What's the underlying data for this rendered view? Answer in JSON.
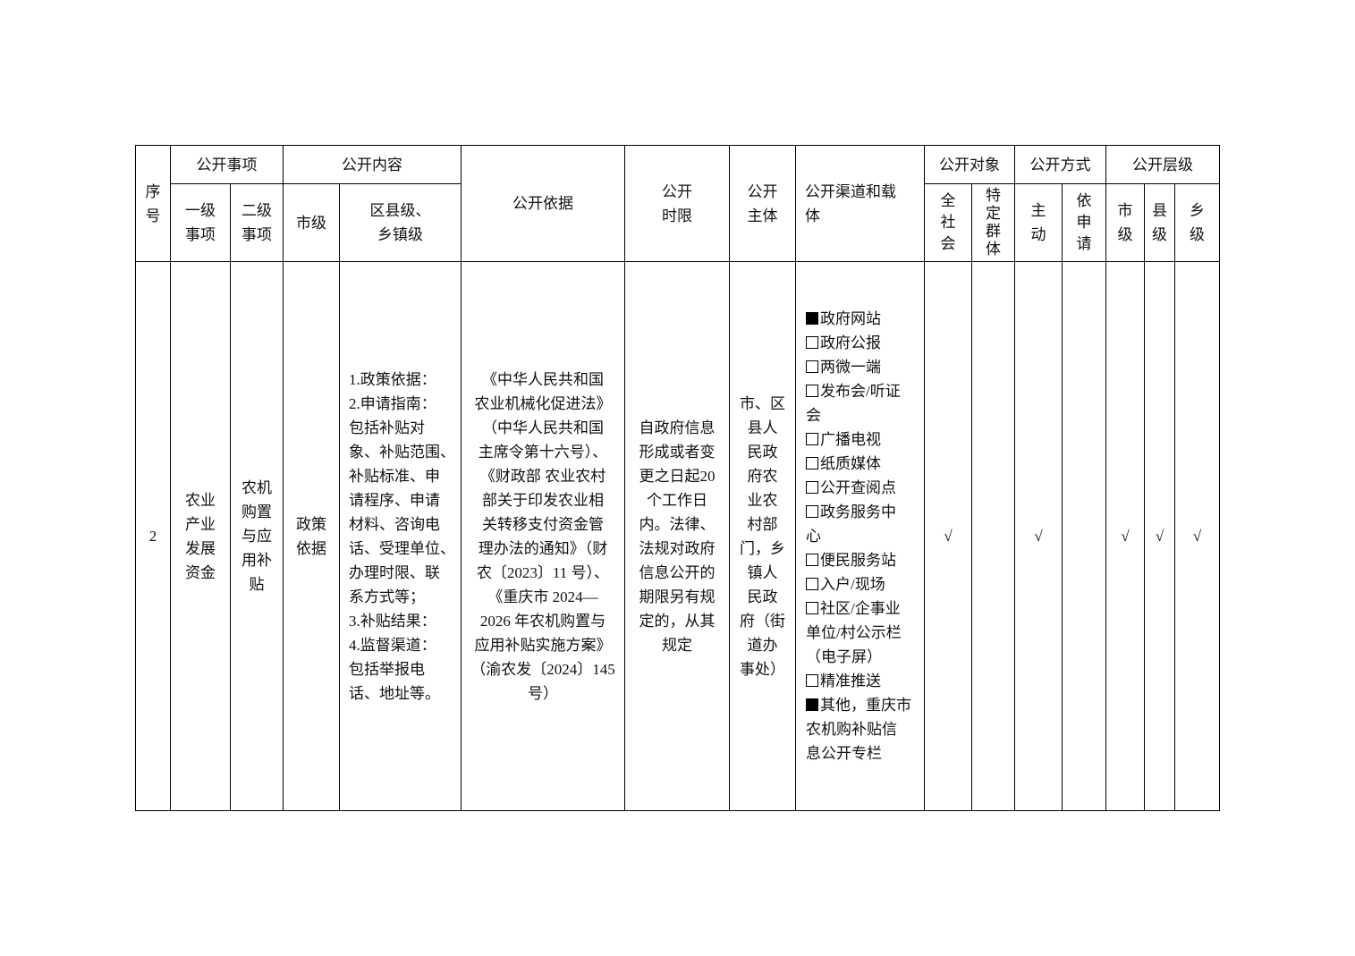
{
  "header": {
    "seq": "序\n号",
    "matter": "公开事项",
    "matter_l1": "一级\n事项",
    "matter_l2": "二级\n事项",
    "content": "公开内容",
    "content_city": "市级",
    "content_county": "区县级、\n乡镇级",
    "basis": "公开依据",
    "time_limit": "公开\n时限",
    "subject": "公开\n主体",
    "channel": "公开渠道和载\n体",
    "target": "公开对象",
    "target_all": "全\n社\n会",
    "target_specific": "特\n定\n群\n体",
    "method": "公开方式",
    "method_active": "主\n动",
    "method_request": "依\n申\n请",
    "level": "公开层级",
    "level_city": "市\n级",
    "level_county": "县\n级",
    "level_town": "乡\n级"
  },
  "row": {
    "seq": "2",
    "matter_l1": "农业\n产业\n发展\n资金",
    "matter_l2": "农机\n购置\n与应\n用补\n贴",
    "content_city": "政策\n依据",
    "content_county": "1.政策依据：\n2.申请指南：\n包括补贴对\n象、补贴范围、\n补贴标准、申\n请程序、申请\n材料、咨询电\n话、受理单位、\n办理时限、联\n系方式等；\n3.补贴结果：\n4.监督渠道：\n包括举报电\n话、地址等。",
    "basis": "《中华人民共和国\n农业机械化促进法》\n（中华人民共和国\n主席令第十六号）、\n《财政部 农业农村\n部关于印发农业相\n关转移支付资金管\n理办法的通知》（财\n农〔2023〕11 号）、\n《重庆市 2024—\n2026 年农机购置与\n应用补贴实施方案》\n（渝农发〔2024〕145\n号）",
    "time_limit": "自政府信息\n形成或者变\n更之日起20\n个工作日\n内。法律、\n法规对政府\n信息公开的\n期限另有规\n定的，从其\n规定",
    "subject": "市、区\n县人\n民政\n府农\n业农\n村部\n门，乡\n镇人\n民政\n府（街\n道办\n事处）",
    "channels": [
      {
        "label": "政府网站",
        "checked": true
      },
      {
        "label": "政府公报",
        "checked": false
      },
      {
        "label": "两微一端",
        "checked": false
      },
      {
        "label": "发布会/听证\n会",
        "checked": false
      },
      {
        "label": "广播电视",
        "checked": false
      },
      {
        "label": "纸质媒体",
        "checked": false
      },
      {
        "label": "公开查阅点",
        "checked": false
      },
      {
        "label": "政务服务中\n心",
        "checked": false
      },
      {
        "label": "便民服务站",
        "checked": false
      },
      {
        "label": "入户/现场",
        "checked": false
      },
      {
        "label": "社区/企事业\n单位/村公示栏\n（电子屏）",
        "checked": false
      },
      {
        "label": "精准推送",
        "checked": false
      },
      {
        "label": "其他，重庆市\n农机购补贴信\n息公开专栏",
        "checked": true
      }
    ],
    "target_all": "√",
    "target_specific": "",
    "method_active": "√",
    "method_request": "",
    "level_city": "√",
    "level_county": "√",
    "level_town": "√"
  }
}
